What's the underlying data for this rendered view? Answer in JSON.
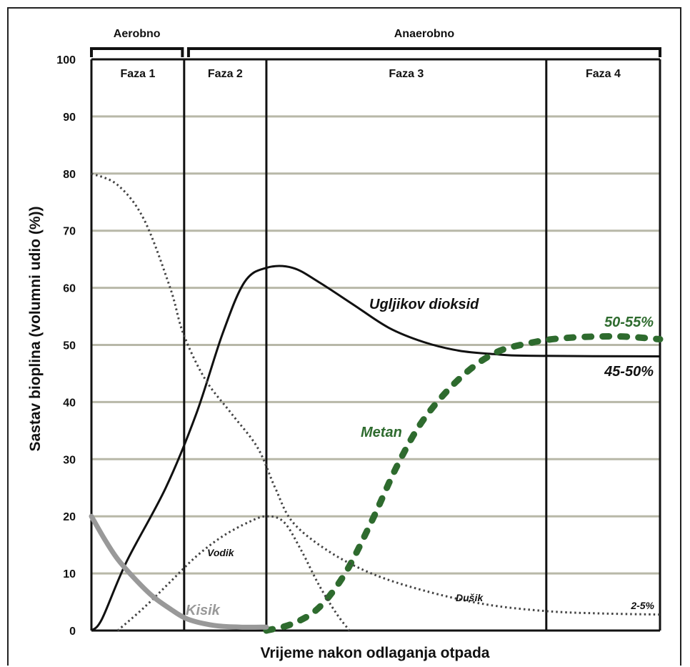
{
  "chart_data": {
    "type": "line",
    "xlabel": "Vrijeme nakon odlaganja otpada",
    "ylabel": "Sastav bioplina (volumni udio (%))",
    "ylim": [
      0,
      100
    ],
    "yticks": [
      "0",
      "10",
      "20",
      "30",
      "40",
      "50",
      "60",
      "70",
      "80",
      "90",
      "100"
    ],
    "grid": true,
    "regimes": [
      {
        "label": "Aerobno",
        "phases": [
          "Faza 1"
        ]
      },
      {
        "label": "Anaerobno",
        "phases": [
          "Faza 2",
          "Faza 3",
          "Faza 4"
        ]
      }
    ],
    "phases": [
      "Faza 1",
      "Faza 2",
      "Faza 3",
      "Faza 4"
    ],
    "series": [
      {
        "name": "Ugljikov dioksid",
        "end_label": "45-50%",
        "color": "#111111",
        "style": "solid",
        "points": [
          [
            0,
            0
          ],
          [
            0.12,
            2
          ],
          [
            0.4,
            12
          ],
          [
            0.85,
            25
          ],
          [
            1.2,
            38
          ],
          [
            1.5,
            52
          ],
          [
            1.75,
            61
          ],
          [
            2.0,
            63.5
          ],
          [
            2.3,
            63.5
          ],
          [
            2.6,
            61
          ],
          [
            3.0,
            57
          ],
          [
            3.4,
            53
          ],
          [
            3.8,
            50.5
          ],
          [
            4.2,
            49
          ],
          [
            4.6,
            48.4
          ],
          [
            5.0,
            48.1
          ],
          [
            6.5,
            48
          ]
        ]
      },
      {
        "name": "Metan",
        "end_label": "50-55%",
        "color": "#2e6b2e",
        "style": "dotted-bold",
        "points": [
          [
            2.0,
            0
          ],
          [
            2.3,
            1.2
          ],
          [
            2.6,
            4
          ],
          [
            2.9,
            10
          ],
          [
            3.2,
            19
          ],
          [
            3.5,
            29
          ],
          [
            3.8,
            37
          ],
          [
            4.2,
            44
          ],
          [
            4.6,
            48.5
          ],
          [
            5.0,
            50.3
          ],
          [
            5.4,
            51.2
          ],
          [
            6.0,
            51.5
          ],
          [
            6.5,
            51
          ]
        ]
      },
      {
        "name": "Dušik",
        "end_label": "2-5%",
        "color": "#444444",
        "style": "dotted",
        "points": [
          [
            0,
            80
          ],
          [
            0.3,
            78
          ],
          [
            0.6,
            72
          ],
          [
            0.9,
            60
          ],
          [
            1.05,
            52
          ],
          [
            1.3,
            44
          ],
          [
            1.6,
            38
          ],
          [
            1.9,
            32
          ],
          [
            2.1,
            25
          ],
          [
            2.3,
            19
          ],
          [
            2.7,
            14
          ],
          [
            3.2,
            10
          ],
          [
            3.8,
            7
          ],
          [
            4.5,
            4.6
          ],
          [
            5.2,
            3.4
          ],
          [
            5.8,
            3
          ],
          [
            6.5,
            2.8
          ]
        ]
      },
      {
        "name": "Vodik",
        "color": "#444444",
        "style": "dotted",
        "points": [
          [
            0.3,
            0
          ],
          [
            0.6,
            4
          ],
          [
            0.9,
            8.5
          ],
          [
            1.2,
            13
          ],
          [
            1.5,
            16.5
          ],
          [
            1.8,
            19
          ],
          [
            2.0,
            20
          ],
          [
            2.2,
            19
          ],
          [
            2.4,
            14
          ],
          [
            2.6,
            8
          ],
          [
            2.8,
            3
          ],
          [
            2.95,
            0
          ]
        ]
      },
      {
        "name": "Kisik",
        "color": "#999999",
        "style": "solid-thick",
        "points": [
          [
            0,
            20
          ],
          [
            0.15,
            16
          ],
          [
            0.3,
            12.5
          ],
          [
            0.5,
            9
          ],
          [
            0.7,
            6
          ],
          [
            0.9,
            3.8
          ],
          [
            1.1,
            2
          ],
          [
            1.4,
            0.9
          ],
          [
            1.7,
            0.6
          ],
          [
            2.0,
            0.6
          ]
        ]
      }
    ]
  },
  "colors": {
    "methane": "#2e6b2e",
    "co2": "#111111",
    "oxygen": "#999999",
    "grid": "#b8b8a8"
  }
}
